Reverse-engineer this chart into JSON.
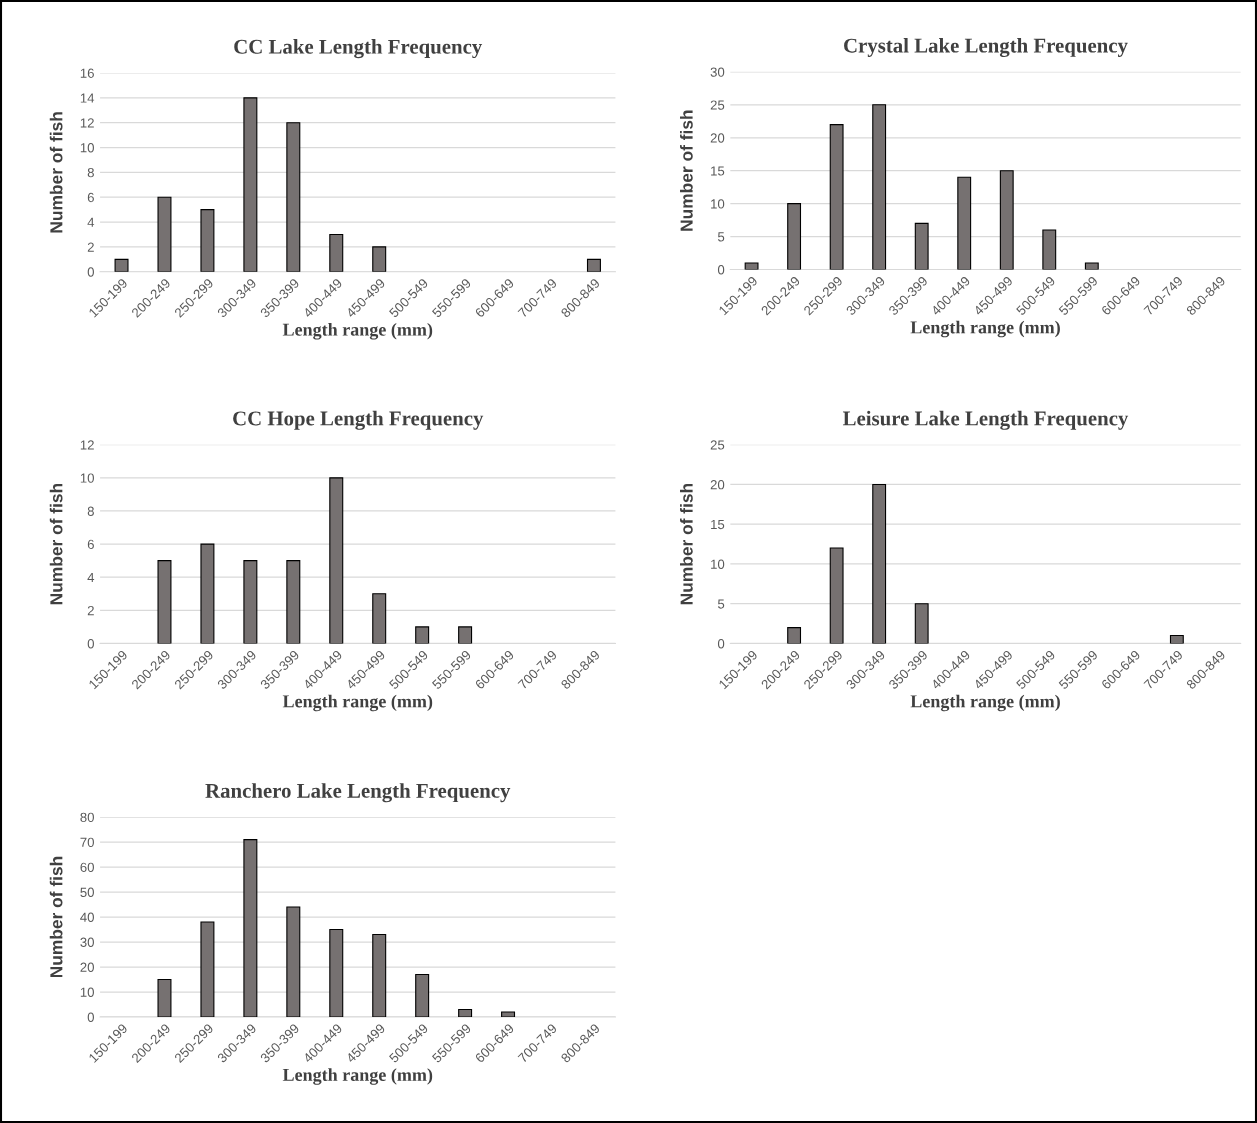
{
  "chart_data": [
    {
      "type": "bar",
      "title": "CC Lake Length Frequency",
      "xlabel": "Length range (mm)",
      "ylabel": "Number of fish",
      "categories": [
        "150-199",
        "200-249",
        "250-299",
        "300-349",
        "350-399",
        "400-449",
        "450-499",
        "500-549",
        "550-599",
        "600-649",
        "700-749",
        "800-849"
      ],
      "values": [
        1,
        6,
        5,
        14,
        12,
        3,
        2,
        0,
        0,
        0,
        0,
        1
      ],
      "color": "#767171",
      "ylim": [
        0,
        16
      ],
      "yticks": [
        0,
        2,
        4,
        6,
        8,
        10,
        12,
        14,
        16
      ],
      "grid": "y"
    },
    {
      "type": "bar",
      "title": "Crystal Lake Length Frequency",
      "xlabel": "Length range (mm)",
      "ylabel": "Number of fish",
      "categories": [
        "150-199",
        "200-249",
        "250-299",
        "300-349",
        "350-399",
        "400-449",
        "450-499",
        "500-549",
        "550-599",
        "600-649",
        "700-749",
        "800-849"
      ],
      "values": [
        1,
        10,
        22,
        25,
        7,
        14,
        15,
        6,
        1,
        0,
        0,
        0
      ],
      "color": "#767171",
      "ylim": [
        0,
        30
      ],
      "yticks": [
        0,
        5,
        10,
        15,
        20,
        25,
        30
      ],
      "grid": "y"
    },
    {
      "type": "bar",
      "title": "CC Hope Length Frequency",
      "xlabel": "Length range (mm)",
      "ylabel": "Number of fish",
      "categories": [
        "150-199",
        "200-249",
        "250-299",
        "300-349",
        "350-399",
        "400-449",
        "450-499",
        "500-549",
        "550-599",
        "600-649",
        "700-749",
        "800-849"
      ],
      "values": [
        0,
        5,
        6,
        5,
        5,
        10,
        3,
        1,
        1,
        0,
        0,
        0
      ],
      "color": "#767171",
      "ylim": [
        0,
        12
      ],
      "yticks": [
        0,
        2,
        4,
        6,
        8,
        10,
        12
      ],
      "grid": "y"
    },
    {
      "type": "bar",
      "title": "Leisure Lake Length Frequency",
      "xlabel": "Length range (mm)",
      "ylabel": "Number of fish",
      "categories": [
        "150-199",
        "200-249",
        "250-299",
        "300-349",
        "350-399",
        "400-449",
        "450-499",
        "500-549",
        "550-599",
        "600-649",
        "700-749",
        "800-849"
      ],
      "values": [
        0,
        2,
        12,
        20,
        5,
        0,
        0,
        0,
        0,
        0,
        1,
        0
      ],
      "color": "#767171",
      "ylim": [
        0,
        25
      ],
      "yticks": [
        0,
        5,
        10,
        15,
        20,
        25
      ],
      "grid": "y"
    },
    {
      "type": "bar",
      "title": "Ranchero Lake Length Frequency",
      "xlabel": "Length range (mm)",
      "ylabel": "Number of fish",
      "categories": [
        "150-199",
        "200-249",
        "250-299",
        "300-349",
        "350-399",
        "400-449",
        "450-499",
        "500-549",
        "550-599",
        "600-649",
        "700-749",
        "800-849"
      ],
      "values": [
        0,
        15,
        38,
        71,
        44,
        35,
        33,
        17,
        3,
        2,
        0,
        0
      ],
      "color": "#767171",
      "ylim": [
        0,
        80
      ],
      "yticks": [
        0,
        10,
        20,
        30,
        40,
        50,
        60,
        70,
        80
      ],
      "grid": "y"
    }
  ]
}
